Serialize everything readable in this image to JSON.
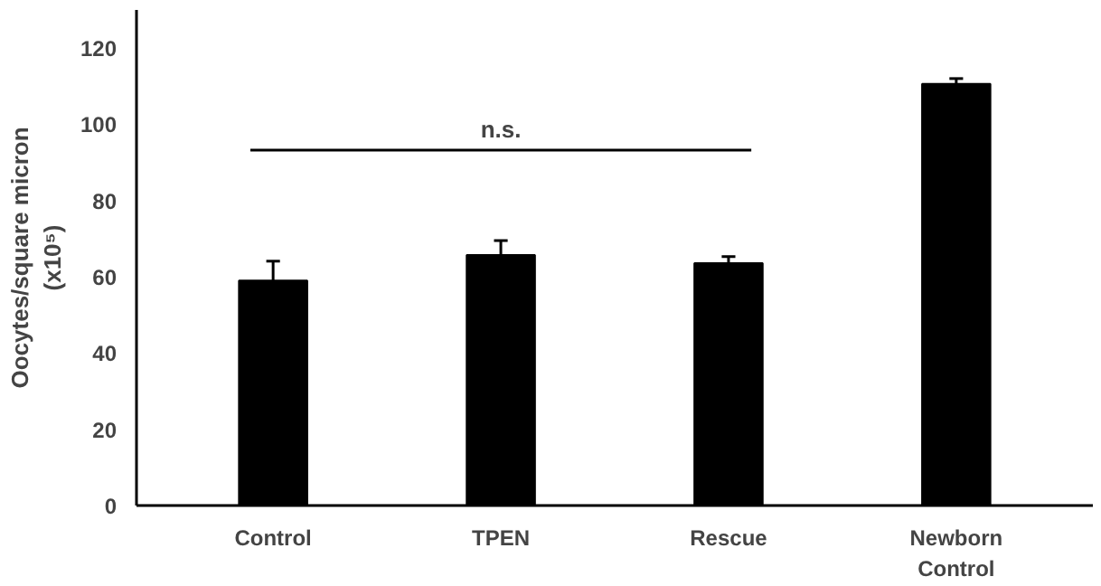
{
  "chart_data": {
    "type": "bar",
    "ylabel": "Oocytes/square micron\n(x10⁵)",
    "categories": [
      "Control",
      "TPEN",
      "Rescue",
      "Newborn\nControl"
    ],
    "values": [
      59,
      65.7,
      63.6,
      110.6
    ],
    "errors": [
      [
        59,
        64.1
      ],
      [
        65.7,
        69.5
      ],
      [
        63.6,
        65.3
      ],
      [
        110.6,
        112
      ]
    ],
    "color": "#000000",
    "ylim": [
      0,
      130
    ],
    "yticks": [
      0,
      20,
      40,
      60,
      80,
      100,
      120
    ],
    "grid": false,
    "annotations": [
      "n.s."
    ]
  }
}
